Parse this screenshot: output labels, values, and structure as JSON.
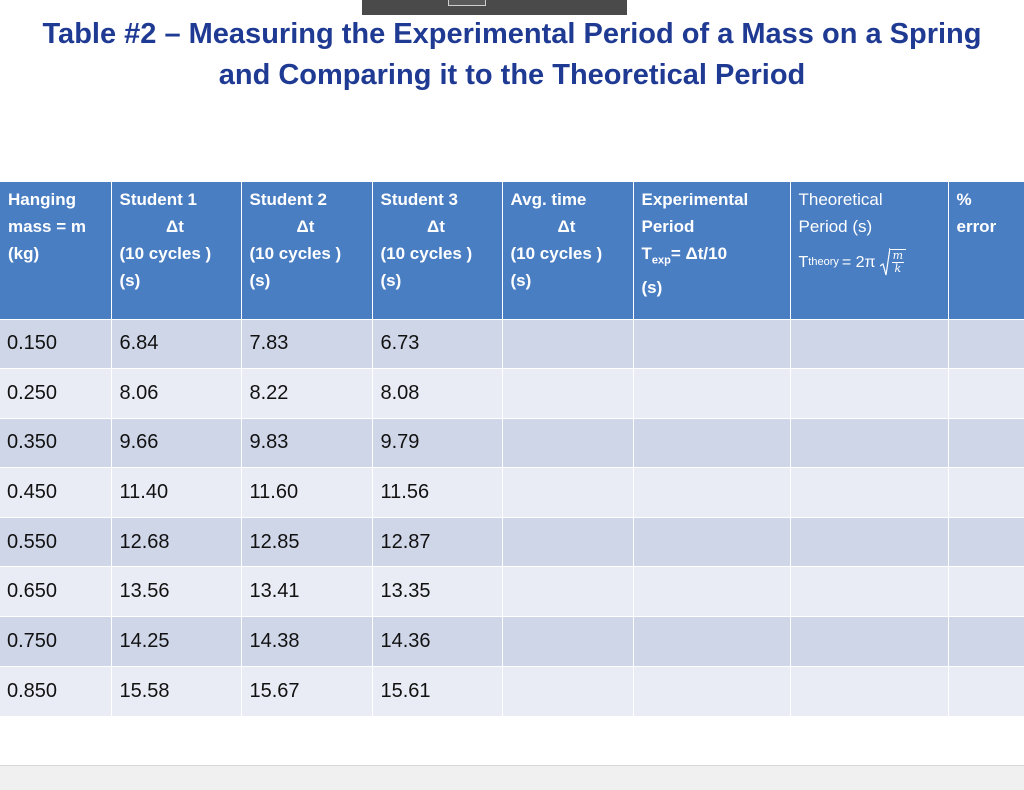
{
  "title": {
    "line1": "Table #2 – Measuring the Experimental Period of a Mass on a Spring",
    "line2": "and Comparing it to the Theoretical Period"
  },
  "headers": {
    "mass": [
      "Hanging",
      "mass = m",
      "(kg)"
    ],
    "student1": [
      "Student 1",
      "Δt",
      "(10 cycles )",
      "(s)"
    ],
    "student2": [
      "Student 2",
      "Δt",
      "(10 cycles )",
      "(s)"
    ],
    "student3": [
      "Student 3",
      "Δt",
      "(10 cycles )",
      "(s)"
    ],
    "avg": [
      "Avg. time",
      "Δt",
      "(10 cycles )",
      "(s)"
    ],
    "experimental": [
      "Experimental",
      "Period",
      "T",
      "exp",
      "= Δt/10",
      "(s)"
    ],
    "theoretical": [
      "Theoretical",
      "Period (s)",
      "T",
      "theory",
      "= 2π",
      "m",
      "k"
    ],
    "error": [
      "%",
      "error"
    ]
  },
  "rows": [
    {
      "mass": "0.150",
      "s1": "6.84",
      "s2": "7.83",
      "s3": "6.73"
    },
    {
      "mass": "0.250",
      "s1": "8.06",
      "s2": "8.22",
      "s3": "8.08"
    },
    {
      "mass": "0.350",
      "s1": "9.66",
      "s2": "9.83",
      "s3": "9.79"
    },
    {
      "mass": "0.450",
      "s1": "11.40",
      "s2": "11.60",
      "s3": "11.56"
    },
    {
      "mass": "0.550",
      "s1": "12.68",
      "s2": "12.85",
      "s3": "12.87"
    },
    {
      "mass": "0.650",
      "s1": "13.56",
      "s2": "13.41",
      "s3": "13.35"
    },
    {
      "mass": "0.750",
      "s1": "14.25",
      "s2": "14.38",
      "s3": "14.36"
    },
    {
      "mass": "0.850",
      "s1": "15.58",
      "s2": "15.67",
      "s3": "15.61"
    }
  ],
  "colors": {
    "title": "#1f3a93",
    "header_bg": "#4a7ec3",
    "row_odd": "#cfd6e8",
    "row_even": "#e9ecf5"
  }
}
